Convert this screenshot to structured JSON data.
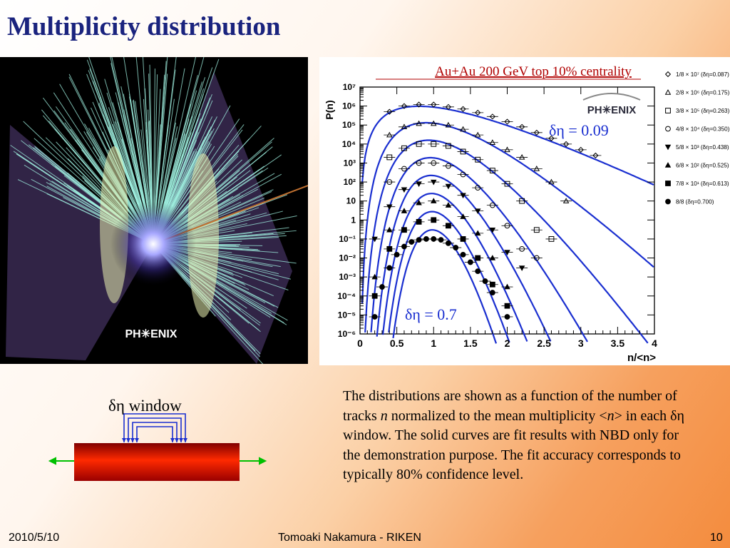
{
  "slide": {
    "title": "Multiplicity distribution",
    "description_parts": [
      "The distributions are shown as a function of the number of tracks ",
      "n",
      " normalized to the mean multiplicity <",
      "n",
      "> in each δη window. The solid curves are fit results with NBD only for the demonstration purpose. The fit accuracy corresponds to typically 80% confidence level."
    ],
    "window_label": "δη window",
    "event_logo": "PH✳ENIX"
  },
  "footer": {
    "date": "2010/5/10",
    "author": "Tomoaki Nakamura - RIKEN",
    "page": "10"
  },
  "colors": {
    "title": "#1a237e",
    "curve": "#1a2fd0",
    "header": "#b00000",
    "arrow": "#00c000",
    "bar": "#e01500",
    "bracket": "#1a2fd0"
  },
  "chart_data": {
    "type": "scatter",
    "title": "Au+Au 200 GeV top 10% centrality",
    "xlabel": "n/<n>",
    "ylabel": "P(n)",
    "xlim": [
      0,
      4
    ],
    "ylim": [
      1e-06,
      10000000.0
    ],
    "yscale": "log",
    "x_ticks": [
      "0",
      "0.5",
      "1",
      "1.5",
      "2",
      "2.5",
      "3",
      "3.5",
      "4"
    ],
    "y_ticks": [
      "10⁻⁶",
      "10⁻⁵",
      "10⁻⁴",
      "10⁻³",
      "10⁻²",
      "10⁻¹",
      "1",
      "10",
      "10²",
      "10³",
      "10⁴",
      "10⁵",
      "10⁶",
      "10⁷"
    ],
    "logo": "PH✳ENIX",
    "annotations": [
      "δη = 0.09",
      "δη = 0.7"
    ],
    "legend_position": "right",
    "series": [
      {
        "name": "1/8 × 10⁷ (δη=0.087)",
        "marker": "diamond-open",
        "scale": 10000000.0,
        "k": 5,
        "x": [
          0.4,
          0.6,
          0.8,
          1.0,
          1.2,
          1.4,
          1.6,
          1.8,
          2.0,
          2.2,
          2.4,
          2.6,
          2.8,
          3.0,
          3.2
        ],
        "y": [
          500000,
          1000000,
          1200000,
          1200000,
          900000,
          700000,
          450000,
          280000,
          150000,
          80000,
          40000,
          20000,
          10000,
          5000,
          2500
        ]
      },
      {
        "name": "2/8 × 10⁶ (δη=0.175)",
        "marker": "triangle-open",
        "scale": 1000000.0,
        "k": 10,
        "x": [
          0.4,
          0.6,
          0.8,
          1.0,
          1.2,
          1.4,
          1.6,
          1.8,
          2.0,
          2.2,
          2.4,
          2.6,
          2.8
        ],
        "y": [
          30000,
          80000,
          120000,
          120000,
          100000,
          60000,
          30000,
          12000,
          5000,
          2000,
          500,
          100,
          10
        ]
      },
      {
        "name": "3/8 × 10⁵ (δη=0.263)",
        "marker": "square-open",
        "scale": 100000.0,
        "k": 15,
        "x": [
          0.4,
          0.6,
          0.8,
          1.0,
          1.2,
          1.4,
          1.6,
          1.8,
          2.0,
          2.2,
          2.4,
          2.6
        ],
        "y": [
          2000,
          6000,
          10000,
          10000,
          8000,
          4000,
          1500,
          400,
          80,
          10,
          0.3,
          0.1
        ]
      },
      {
        "name": "4/8 × 10⁴ (δη=0.350)",
        "marker": "circle-open",
        "scale": 10000.0,
        "k": 22,
        "x": [
          0.4,
          0.6,
          0.8,
          1.0,
          1.2,
          1.4,
          1.6,
          1.8,
          2.0,
          2.2,
          2.4
        ],
        "y": [
          100,
          500,
          1000,
          1000,
          700,
          250,
          50,
          6,
          0.5,
          0.03,
          0.01
        ]
      },
      {
        "name": "5/8 × 10³ (δη=0.438)",
        "marker": "triangle-down-filled",
        "scale": 1000.0,
        "k": 30,
        "x": [
          0.2,
          0.4,
          0.6,
          0.8,
          1.0,
          1.2,
          1.4,
          1.6,
          1.8,
          2.0,
          2.2
        ],
        "y": [
          0.1,
          5,
          40,
          80,
          100,
          60,
          20,
          3,
          0.3,
          0.02,
          0.003
        ]
      },
      {
        "name": "6/8 × 10² (δη=0.525)",
        "marker": "triangle-up-filled",
        "scale": 100.0,
        "k": 38,
        "x": [
          0.2,
          0.4,
          0.6,
          0.8,
          1.0,
          1.2,
          1.4,
          1.6,
          1.8,
          2.0
        ],
        "y": [
          0.001,
          0.3,
          3,
          8,
          10,
          6,
          1.5,
          0.2,
          0.01,
          0.0003
        ]
      },
      {
        "name": "7/8 × 10¹ (δη=0.613)",
        "marker": "square-filled",
        "scale": 10.0,
        "k": 47,
        "x": [
          0.2,
          0.4,
          0.6,
          0.8,
          1.0,
          1.2,
          1.4,
          1.6,
          1.8,
          2.0
        ],
        "y": [
          0.0001,
          0.03,
          0.3,
          0.8,
          1,
          0.5,
          0.1,
          0.01,
          0.0004,
          3e-05
        ]
      },
      {
        "name": "8/8 (δη=0.700)",
        "marker": "circle-filled",
        "scale": 1,
        "k": 56,
        "x": [
          0.2,
          0.3,
          0.4,
          0.5,
          0.6,
          0.7,
          0.8,
          0.9,
          1.0,
          1.1,
          1.2,
          1.3,
          1.4,
          1.5,
          1.6,
          1.7,
          1.8,
          2.0
        ],
        "y": [
          8e-06,
          0.0003,
          0.003,
          0.015,
          0.04,
          0.07,
          0.09,
          0.1,
          0.1,
          0.09,
          0.06,
          0.035,
          0.015,
          0.006,
          0.002,
          0.0006,
          0.00015,
          8e-06
        ]
      }
    ]
  }
}
